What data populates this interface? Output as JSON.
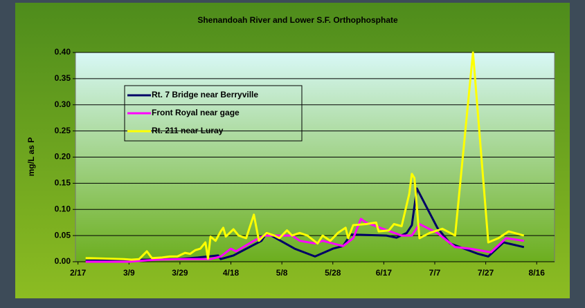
{
  "chart_data": {
    "type": "line",
    "title": "Shenandoah River and Lower S.F. Orthophosphate",
    "y_label": "mg/L as P",
    "xlim": [
      "2/16",
      "8/23"
    ],
    "xticks": [
      "2/17",
      "3/9",
      "3/29",
      "4/18",
      "5/8",
      "5/28",
      "6/17",
      "7/7",
      "7/27",
      "8/16"
    ],
    "ylim": [
      0,
      0.4
    ],
    "yticks": [
      {
        "value": 0,
        "label": "0.00"
      },
      {
        "value": 0.05,
        "label": "0.05"
      },
      {
        "value": 0.1,
        "label": "0.10"
      },
      {
        "value": 0.15,
        "label": "0.15"
      },
      {
        "value": 0.2,
        "label": "0.20"
      },
      {
        "value": 0.25,
        "label": "0.25"
      },
      {
        "value": 0.3,
        "label": "0.30"
      },
      {
        "value": 0.35,
        "label": "0.35"
      },
      {
        "value": 0.4,
        "label": "0.40"
      }
    ],
    "grid": true,
    "series": [
      {
        "name": "Rt. 7 Bridge near Berryville",
        "color": "#000066",
        "x": [
          "2/20",
          "3/28",
          "4/5",
          "4/13",
          "4/14",
          "4/19",
          "4/30",
          "5/2",
          "5/13",
          "5/21",
          "5/28",
          "6/1",
          "6/4",
          "6/18",
          "6/22",
          "6/26",
          "6/28",
          "6/30",
          "7/8",
          "7/13",
          "7/24",
          "7/28",
          "8/3",
          "8/11"
        ],
        "values": [
          0.002,
          0.005,
          0.008,
          0.012,
          0.005,
          0.012,
          0.04,
          0.055,
          0.025,
          0.01,
          0.025,
          0.03,
          0.052,
          0.05,
          0.046,
          0.055,
          0.07,
          0.14,
          0.065,
          0.035,
          0.015,
          0.01,
          0.037,
          0.028
        ]
      },
      {
        "name": "Front Royal near gage",
        "color": "#ff00ff",
        "x": [
          "2/20",
          "3/9",
          "3/20",
          "3/29",
          "4/10",
          "4/14",
          "4/18",
          "4/20",
          "4/27",
          "5/1",
          "5/12",
          "5/15",
          "5/21",
          "5/24",
          "6/1",
          "6/5",
          "6/8",
          "6/10",
          "6/24",
          "6/28",
          "7/1",
          "7/8",
          "7/15",
          "7/21",
          "7/29",
          "8/4",
          "8/11"
        ],
        "values": [
          0.0,
          0.0,
          0.004,
          0.005,
          0.005,
          0.01,
          0.025,
          0.02,
          0.04,
          0.05,
          0.05,
          0.04,
          0.035,
          0.04,
          0.03,
          0.045,
          0.082,
          0.075,
          0.05,
          0.05,
          0.072,
          0.055,
          0.028,
          0.025,
          0.018,
          0.045,
          0.04
        ]
      },
      {
        "name": "Rt. 211 near Luray",
        "color": "#ffff00",
        "x": [
          "2/20",
          "3/7",
          "3/10",
          "3/13",
          "3/16",
          "3/18",
          "3/22",
          "3/25",
          "3/28",
          "3/31",
          "4/2",
          "4/4",
          "4/6",
          "4/8",
          "4/9",
          "4/10",
          "4/12",
          "4/14",
          "4/15",
          "4/16",
          "4/19",
          "4/21",
          "4/24",
          "4/27",
          "4/29",
          "5/2",
          "5/5",
          "5/7",
          "5/10",
          "5/12",
          "5/15",
          "5/18",
          "5/22",
          "5/24",
          "5/27",
          "5/30",
          "6/2",
          "6/3",
          "6/5",
          "6/10",
          "6/14",
          "6/15",
          "6/19",
          "6/21",
          "6/24",
          "6/27",
          "6/28",
          "6/29",
          "7/1",
          "7/5",
          "7/10",
          "7/15",
          "7/22",
          "7/28",
          "8/1",
          "8/5",
          "8/11"
        ],
        "values": [
          0.007,
          0.005,
          0.004,
          0.005,
          0.02,
          0.007,
          0.008,
          0.01,
          0.01,
          0.017,
          0.015,
          0.022,
          0.025,
          0.037,
          0.006,
          0.048,
          0.04,
          0.058,
          0.065,
          0.048,
          0.062,
          0.05,
          0.045,
          0.09,
          0.04,
          0.055,
          0.05,
          0.045,
          0.06,
          0.05,
          0.055,
          0.05,
          0.035,
          0.05,
          0.04,
          0.055,
          0.065,
          0.045,
          0.07,
          0.072,
          0.075,
          0.058,
          0.06,
          0.072,
          0.068,
          0.13,
          0.168,
          0.16,
          0.045,
          0.055,
          0.063,
          0.05,
          0.4,
          0.037,
          0.045,
          0.058,
          0.05
        ]
      }
    ]
  }
}
